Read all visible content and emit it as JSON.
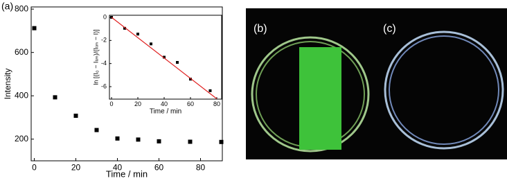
{
  "panels": {
    "a": "(a)",
    "b": "(b)",
    "c": "(c)"
  },
  "chart_data": [
    {
      "type": "scatter",
      "x_label": "Time / min",
      "y_label": "Intensity",
      "series": [
        {
          "color": "#000000",
          "x": [
            0,
            10,
            20,
            30,
            40,
            50,
            60,
            75,
            90
          ],
          "values": [
            712,
            393,
            308,
            242,
            203,
            198,
            190,
            188,
            187
          ]
        }
      ],
      "xlim": [
        -1.5,
        90.5
      ],
      "xticks": [
        0,
        20,
        40,
        60,
        80
      ],
      "ylim": [
        100,
        810
      ],
      "yticks": [
        200,
        400,
        600,
        800
      ]
    },
    {
      "type": "scatter",
      "x_label": "Time / min",
      "y_label": "ln [(I₀ − Iₗᵢₘ)/(Iₗᵢₘ − I)]",
      "series": [
        {
          "color": "#000000",
          "x": [
            0,
            10,
            20,
            30,
            40,
            50,
            60,
            75
          ],
          "values": [
            0,
            -0.95,
            -1.45,
            -2.3,
            -3.45,
            -3.9,
            -5.35,
            -6.35
          ]
        },
        {
          "type": "line",
          "color": "#e02020",
          "x": [
            0,
            80
          ],
          "values": [
            0,
            -7.05
          ]
        }
      ],
      "xlim": [
        -1.6,
        83.7
      ],
      "xticks": [
        0,
        20,
        40,
        60,
        80
      ],
      "ylim": [
        -7.08,
        0.18
      ],
      "yticks": [
        0,
        -2,
        -4,
        -6
      ]
    }
  ]
}
